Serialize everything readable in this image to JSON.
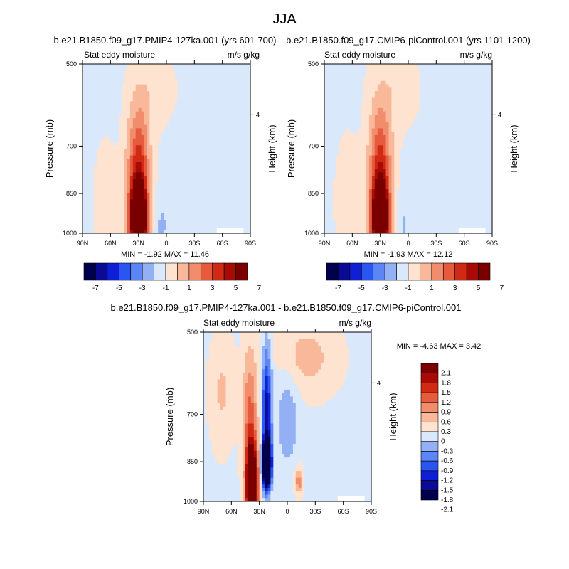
{
  "page_title": "JJA",
  "colors": {
    "levels_11": [
      "#00004c",
      "#0a0a96",
      "#0f1fd6",
      "#2a55f0",
      "#5c85f5",
      "#93b0f5",
      "#d9e8fb",
      "#fde3d0",
      "#f9b89a",
      "#f18c6c",
      "#e65a3e",
      "#d02a15",
      "#a80b05",
      "#7a0000"
    ],
    "levels_diff": [
      "#00004c",
      "#0a0a96",
      "#0f1fd6",
      "#2a55f0",
      "#5c85f5",
      "#93b0f5",
      "#d9e8fb",
      "#fde3d0",
      "#f9b89a",
      "#f18c6c",
      "#e65a3e",
      "#d02a15",
      "#a80b05",
      "#7a0000"
    ]
  },
  "chart_data": [
    {
      "type": "heatmap",
      "title": "b.e21.B1850.f09_g17.PMIP4-127ka.001 (yrs 601-700)",
      "left_string": "Stat eddy moisture",
      "right_string": "m/s g/kg",
      "ylabel": "Pressure (mb)",
      "ylabel_right": "Height (km)",
      "x_ticks": [
        "90N",
        "60N",
        "30N",
        "0",
        "30S",
        "60S",
        "90S"
      ],
      "y_ticks": [
        "500",
        "700",
        "850",
        "1000"
      ],
      "y_right_ticks": [
        "4"
      ],
      "min_max": "MIN =  -1.92  MAX =  11.46",
      "colorbar_labels": [
        "-7",
        "-5",
        "-3",
        "-1",
        "1",
        "3",
        "5",
        "7"
      ]
    },
    {
      "type": "heatmap",
      "title": "b.e21.B1850.f09_g17.CMIP6-piControl.001 (yrs 1101-1200)",
      "left_string": "Stat eddy moisture",
      "right_string": "m/s g/kg",
      "ylabel": "Pressure (mb)",
      "ylabel_right": "Height (km)",
      "x_ticks": [
        "90N",
        "60N",
        "30N",
        "0",
        "30S",
        "60S",
        "90S"
      ],
      "y_ticks": [
        "500",
        "700",
        "850",
        "1000"
      ],
      "y_right_ticks": [
        "4"
      ],
      "min_max": "MIN =  -1.93  MAX =  12.12",
      "colorbar_labels": [
        "-7",
        "-5",
        "-3",
        "-1",
        "1",
        "3",
        "5",
        "7"
      ]
    },
    {
      "type": "heatmap",
      "title": "b.e21.B1850.f09_g17.PMIP4-127ka.001 - b.e21.B1850.f09_g17.CMIP6-piControl.001",
      "left_string": "Stat eddy moisture",
      "right_string": "m/s g/kg",
      "ylabel": "Pressure (mb)",
      "ylabel_right": "Height (km)",
      "x_ticks": [
        "90N",
        "60N",
        "30N",
        "0",
        "30S",
        "60S",
        "90S"
      ],
      "y_ticks": [
        "500",
        "700",
        "850",
        "1000"
      ],
      "y_right_ticks": [
        "4"
      ],
      "min_max": "MIN =  -4.63  MAX =   3.42",
      "colorbar_labels": [
        "2.1",
        "1.8",
        "1.5",
        "1.2",
        "0.9",
        "0.6",
        "0.3",
        "0",
        "-0.3",
        "-0.6",
        "-0.9",
        "-1.2",
        "-1.5",
        "-1.8",
        "-2.1"
      ]
    }
  ]
}
